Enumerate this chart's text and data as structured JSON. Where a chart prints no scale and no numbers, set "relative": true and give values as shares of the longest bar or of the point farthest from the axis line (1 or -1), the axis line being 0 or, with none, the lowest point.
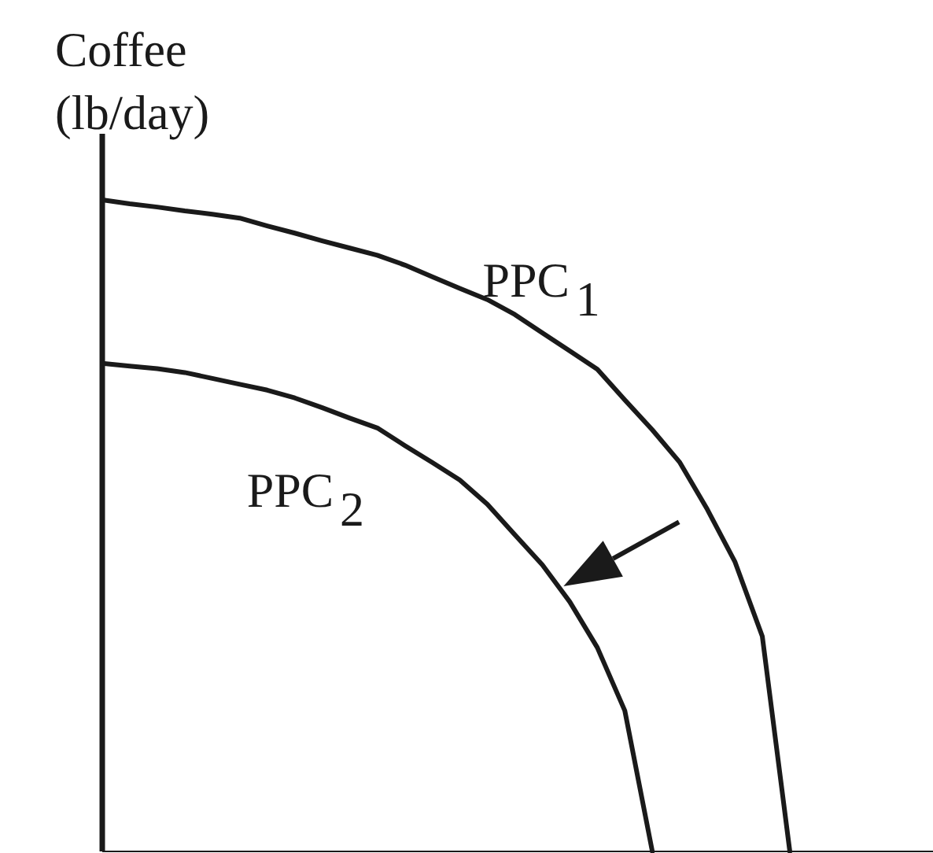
{
  "chart_data": {
    "type": "line",
    "relative": true,
    "ylabel": "Coffee (lb/day)",
    "marker": "none",
    "line_style": "solid",
    "grid": false,
    "categories": [
      null,
      null,
      null,
      null,
      null,
      null,
      null,
      null,
      null,
      null,
      null,
      null,
      null,
      null,
      null,
      null,
      null,
      null,
      null,
      null,
      null,
      null,
      null,
      null,
      null,
      null
    ],
    "series": [
      {
        "name": "PPC$_{1}$",
        "color": "#1a1a1a",
        "values": [
          1,
          0.994,
          0.989,
          0.983,
          0.978,
          0.972,
          0.96,
          0.949,
          0.937,
          0.926,
          0.915,
          0.9,
          0.882,
          0.864,
          0.847,
          0.824,
          0.796,
          0.768,
          0.74,
          0.693,
          0.647,
          0.597,
          0.525,
          0.445,
          0.33,
          0
        ]
      },
      {
        "name": "PPC$_{2}$",
        "color": "#1a1a1a",
        "values": [
          0.749,
          0.745,
          0.741,
          0.735,
          0.726,
          0.717,
          0.708,
          0.696,
          0.681,
          0.665,
          0.65,
          0.623,
          0.597,
          0.57,
          0.533,
          0.486,
          0.44,
          0.383,
          0.313,
          0.216,
          0,
          null,
          null,
          null,
          null,
          null
        ]
      }
    ]
  }
}
